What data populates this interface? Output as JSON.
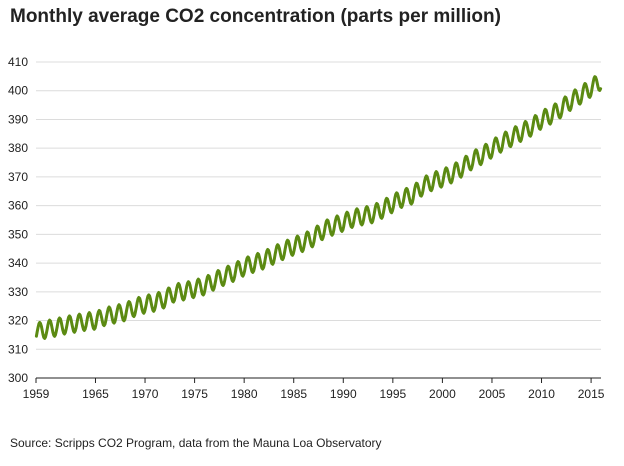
{
  "title": "Monthly average CO2 concentration (parts per million)",
  "source": "Source: Scripps CO2 Program, data from the Mauna Loa Observatory",
  "colors": {
    "line": "#5b8a12",
    "gridline": "#dcdcdc",
    "axis": "#222222"
  },
  "chart_data": {
    "type": "line",
    "title": "Monthly average CO2 concentration (parts per million)",
    "xlabel": "",
    "ylabel": "",
    "grid": true,
    "xlim": [
      1959,
      2016
    ],
    "ylim": [
      300,
      410
    ],
    "x_ticks": [
      1959,
      1965,
      1970,
      1975,
      1980,
      1985,
      1990,
      1995,
      2000,
      2005,
      2010,
      2015
    ],
    "y_ticks": [
      300,
      310,
      320,
      330,
      340,
      350,
      360,
      370,
      380,
      390,
      400,
      410
    ],
    "series": [
      {
        "frequency": "monthly",
        "x": [
          1959,
          1960,
          1961,
          1962,
          1963,
          1964,
          1965,
          1966,
          1967,
          1968,
          1969,
          1970,
          1971,
          1972,
          1973,
          1974,
          1975,
          1976,
          1977,
          1978,
          1979,
          1980,
          1981,
          1982,
          1983,
          1984,
          1985,
          1986,
          1987,
          1988,
          1989,
          1990,
          1991,
          1992,
          1993,
          1994,
          1995,
          1996,
          1997,
          1998,
          1999,
          2000,
          2001,
          2002,
          2003,
          2004,
          2005,
          2006,
          2007,
          2008,
          2009,
          2010,
          2011,
          2012,
          2013,
          2014,
          2015
        ],
        "annual_mean": [
          316.0,
          316.9,
          317.6,
          318.4,
          319.0,
          319.6,
          320.0,
          321.4,
          322.2,
          323.0,
          324.6,
          325.7,
          326.3,
          327.5,
          329.7,
          330.2,
          331.1,
          332.0,
          333.8,
          335.4,
          336.8,
          338.7,
          339.9,
          341.1,
          342.8,
          344.4,
          345.9,
          347.2,
          348.9,
          351.5,
          352.9,
          354.2,
          355.6,
          356.4,
          357.1,
          358.8,
          360.8,
          362.6,
          363.7,
          366.7,
          368.4,
          369.6,
          371.1,
          373.2,
          375.8,
          377.5,
          379.8,
          381.9,
          383.8,
          385.6,
          387.4,
          389.9,
          391.6,
          393.8,
          396.5,
          398.6,
          401.0
        ],
        "seasonal_amplitude": [
          6,
          6,
          6,
          6,
          6,
          6,
          6,
          6,
          6,
          6,
          6,
          6,
          6,
          6,
          6,
          6,
          6,
          6,
          6,
          6,
          6,
          6,
          6,
          6,
          6,
          6,
          6,
          6,
          6,
          6,
          6,
          6,
          6,
          6,
          6,
          6,
          6,
          6,
          6,
          6,
          6,
          6,
          6,
          6,
          6,
          6,
          6,
          6,
          6,
          6,
          6,
          6,
          6,
          6,
          6,
          6,
          6
        ]
      }
    ]
  }
}
